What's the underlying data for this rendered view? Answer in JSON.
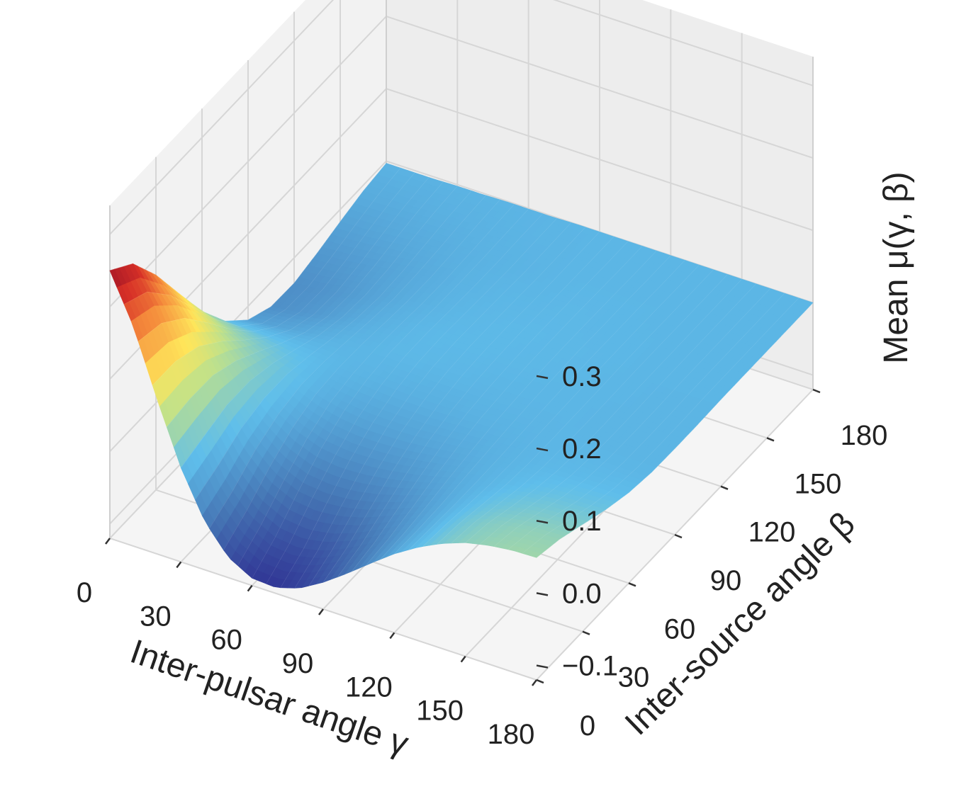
{
  "chart_data": {
    "type": "surface3d",
    "title": "",
    "xlabel": "Inter-pulsar angle γ",
    "ylabel": "Inter-source angle β",
    "zlabel": "Mean μ(γ, β)",
    "x_ticks": [
      "0",
      "30",
      "60",
      "90",
      "120",
      "150",
      "180"
    ],
    "y_ticks": [
      "0",
      "30",
      "60",
      "90",
      "120",
      "150",
      "180"
    ],
    "z_ticks": [
      "−0.1",
      "0.0",
      "0.1",
      "0.2",
      "0.3"
    ],
    "xlim": [
      0,
      180
    ],
    "ylim": [
      0,
      180
    ],
    "zlim": [
      -0.12,
      0.34
    ],
    "colormap": "RdYlBu_r",
    "grid": true,
    "surface": {
      "gamma": [
        0,
        10,
        20,
        30,
        40,
        50,
        60,
        70,
        80,
        90,
        100,
        110,
        120,
        130,
        140,
        150,
        160,
        170,
        180
      ],
      "beta": [
        0,
        15,
        30,
        45,
        60,
        75,
        90,
        105,
        120,
        135,
        150,
        165,
        180
      ],
      "mu": [
        [
          0.25,
          0.226,
          0.177,
          0.118,
          0.06,
          0.013,
          -0.019,
          -0.034,
          -0.035,
          -0.027,
          -0.017,
          -0.008,
          -0.003
        ],
        [
          0.183,
          0.172,
          0.141,
          0.097,
          0.051,
          0.012,
          -0.016,
          -0.03,
          -0.032,
          -0.025,
          -0.016,
          -0.008,
          -0.003
        ],
        [
          0.093,
          0.095,
          0.087,
          0.065,
          0.037,
          0.01,
          -0.012,
          -0.024,
          -0.026,
          -0.021,
          -0.013,
          -0.007,
          -0.003
        ],
        [
          0.01,
          0.02,
          0.03,
          0.03,
          0.021,
          0.007,
          -0.007,
          -0.016,
          -0.019,
          -0.016,
          -0.01,
          -0.005,
          -0.002
        ],
        [
          -0.053,
          -0.036,
          -0.013,
          0.001,
          0.007,
          0.004,
          -0.002,
          -0.008,
          -0.012,
          -0.011,
          -0.008,
          -0.004,
          -0.002
        ],
        [
          -0.092,
          -0.07,
          -0.042,
          -0.019,
          -0.005,
          0.0,
          0.0,
          -0.003,
          -0.006,
          -0.007,
          -0.005,
          -0.003,
          -0.001
        ],
        [
          -0.11,
          -0.087,
          -0.057,
          -0.031,
          -0.012,
          -0.002,
          0.002,
          0.001,
          -0.002,
          -0.003,
          -0.003,
          -0.002,
          -0.001
        ],
        [
          -0.112,
          -0.091,
          -0.061,
          -0.035,
          -0.016,
          -0.004,
          0.002,
          0.003,
          0.001,
          -0.001,
          -0.002,
          -0.001,
          -0.001
        ],
        [
          -0.102,
          -0.084,
          -0.058,
          -0.034,
          -0.016,
          -0.005,
          0.001,
          0.003,
          0.002,
          0.001,
          -0.001,
          -0.001,
          0.0
        ],
        [
          -0.083,
          -0.07,
          -0.05,
          -0.03,
          -0.015,
          -0.005,
          0.001,
          0.003,
          0.003,
          0.001,
          0.0,
          0.0,
          0.0
        ],
        [
          -0.06,
          -0.052,
          -0.038,
          -0.024,
          -0.012,
          -0.004,
          0.0,
          0.002,
          0.003,
          0.002,
          0.001,
          0.0,
          0.0
        ],
        [
          -0.035,
          -0.032,
          -0.025,
          -0.016,
          -0.009,
          -0.003,
          0.0,
          0.002,
          0.002,
          0.002,
          0.001,
          0.0,
          0.0
        ],
        [
          -0.011,
          -0.012,
          -0.011,
          -0.008,
          -0.005,
          -0.002,
          0.0,
          0.001,
          0.002,
          0.001,
          0.001,
          0.0,
          0.0
        ],
        [
          0.009,
          0.006,
          0.002,
          -0.001,
          -0.002,
          -0.001,
          0.0,
          0.001,
          0.001,
          0.001,
          0.001,
          0.0,
          0.0
        ],
        [
          0.025,
          0.021,
          0.013,
          0.005,
          0.001,
          0.0,
          0.0,
          0.0,
          0.001,
          0.001,
          0.0,
          0.0,
          0.0
        ],
        [
          0.037,
          0.031,
          0.02,
          0.01,
          0.003,
          0.0,
          -0.001,
          0.0,
          0.0,
          0.0,
          0.0,
          0.0,
          0.0
        ],
        [
          0.044,
          0.037,
          0.025,
          0.013,
          0.004,
          0.0,
          -0.001,
          -0.001,
          0.0,
          0.0,
          0.0,
          0.0,
          0.0
        ],
        [
          0.048,
          0.04,
          0.027,
          0.014,
          0.005,
          0.0,
          -0.001,
          -0.001,
          0.0,
          0.0,
          0.0,
          0.0,
          0.0
        ],
        [
          0.049,
          0.041,
          0.028,
          0.015,
          0.005,
          0.0,
          -0.001,
          -0.001,
          0.0,
          0.0,
          0.0,
          0.0,
          0.0
        ]
      ]
    }
  }
}
